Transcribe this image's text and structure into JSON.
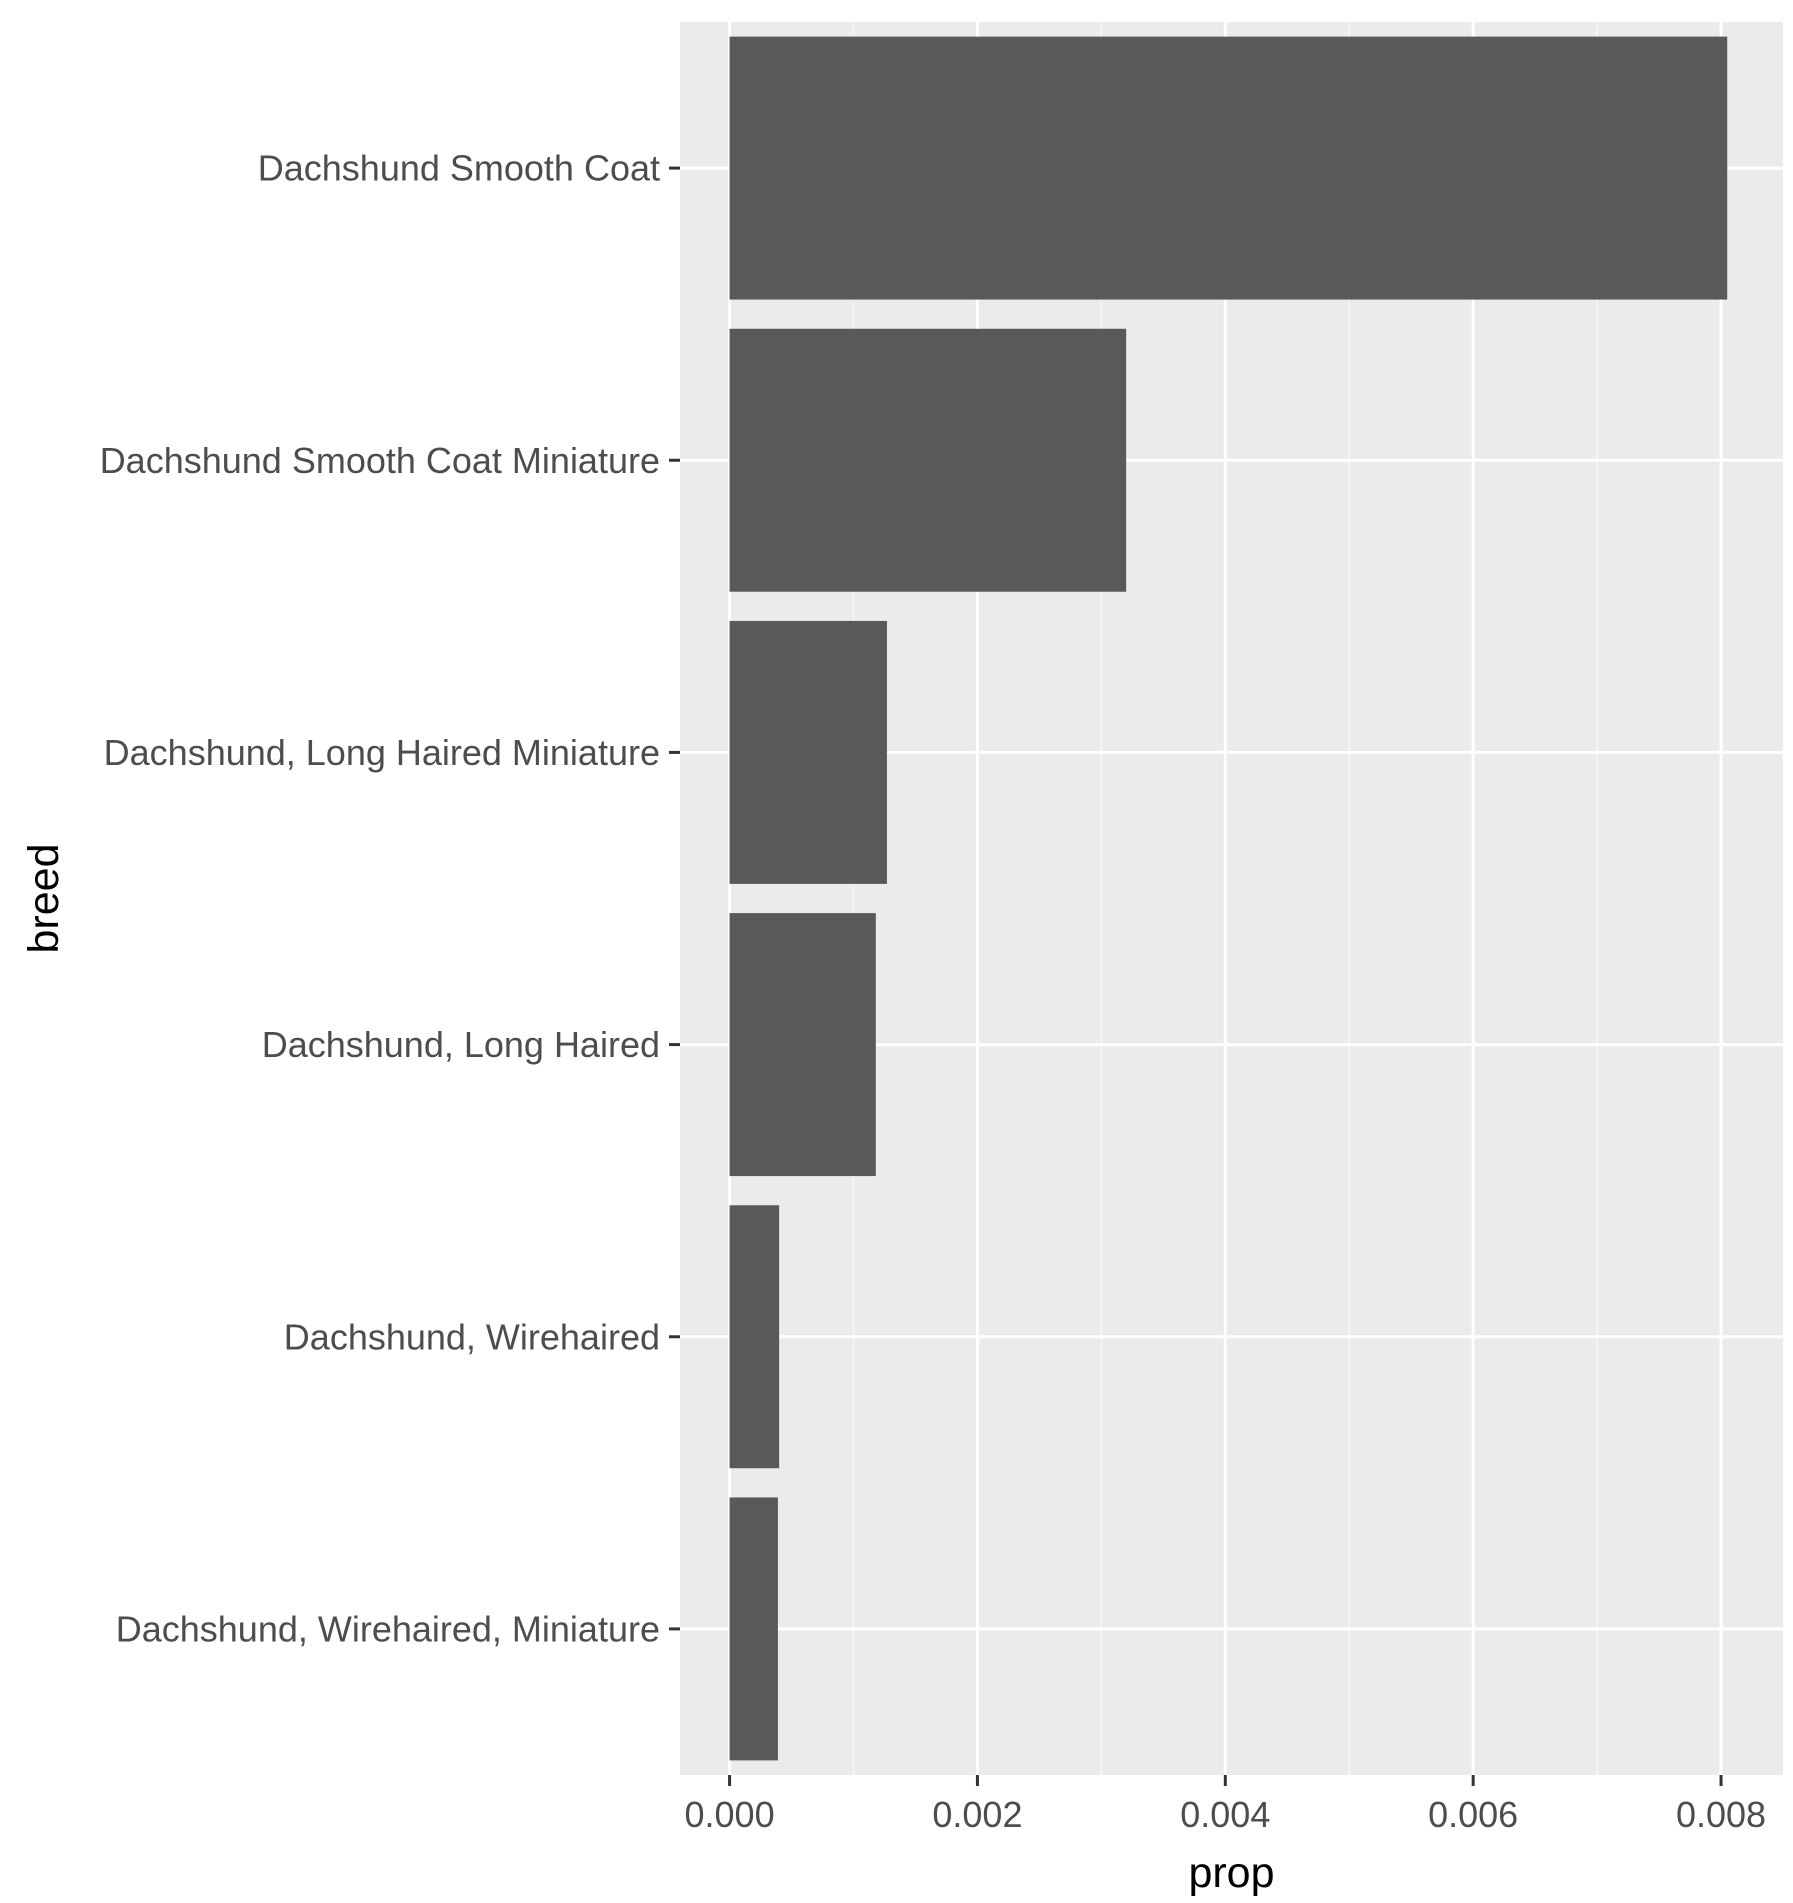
{
  "chart_data": {
    "type": "bar",
    "orientation": "horizontal",
    "title": "",
    "xlabel": "prop",
    "ylabel": "breed",
    "categories": [
      "Dachshund Smooth Coat",
      "Dachshund Smooth Coat Miniature",
      "Dachshund, Long Haired Miniature",
      "Dachshund, Long Haired",
      "Dachshund, Wirehaired",
      "Dachshund, Wirehaired, Miniature"
    ],
    "values": [
      0.00805,
      0.0032,
      0.00127,
      0.00118,
      0.0004,
      0.00039
    ],
    "xlim": [
      -0.0004,
      0.0085
    ],
    "x_ticks": [
      0,
      0.002,
      0.004,
      0.006,
      0.008
    ],
    "x_tick_labels": [
      "0.000",
      "0.002",
      "0.004",
      "0.006",
      "0.008"
    ],
    "grid": true,
    "legend": "none",
    "colors": {
      "panel_background": "#ebebeb",
      "grid_major": "#ffffff",
      "grid_minor": "#f5f5f5",
      "bar_fill": "#595959",
      "tick_mark": "#333333",
      "tick_text": "#4d4d4d",
      "axis_title": "#000000"
    }
  }
}
